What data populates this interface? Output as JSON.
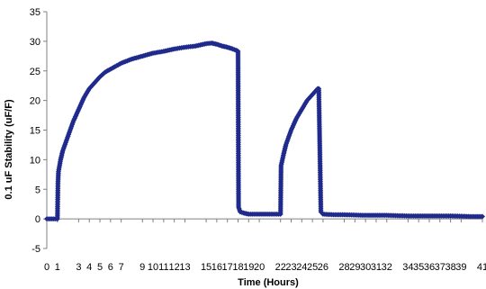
{
  "chart_data": {
    "type": "scatter",
    "title": "",
    "xlabel": "Time (Hours)",
    "ylabel": "0.1 uF Stability (uF/F)",
    "xlim": [
      0,
      41
    ],
    "ylim": [
      -5,
      35
    ],
    "x_ticks": [
      0,
      1,
      3,
      4,
      5,
      6,
      7,
      9,
      10,
      11,
      12,
      13,
      15,
      16,
      17,
      18,
      19,
      20,
      22,
      23,
      24,
      25,
      26,
      28,
      29,
      30,
      31,
      32,
      34,
      35,
      36,
      37,
      38,
      39,
      41
    ],
    "y_ticks": [
      -5,
      0,
      5,
      10,
      15,
      20,
      25,
      30,
      35
    ],
    "grid": false,
    "legend": "none",
    "marker_color": "#1f2a8c",
    "series": [
      {
        "x": [
          0,
          0.5,
          1.0,
          1.05,
          1.1,
          1.3,
          1.5,
          2,
          2.5,
          3,
          3.5,
          4,
          4.5,
          5,
          5.5,
          6,
          7,
          8,
          9,
          10,
          11,
          12,
          13,
          14,
          15,
          15.5,
          16,
          16.5,
          17,
          17.5,
          17.8,
          18.0,
          18.05,
          18.2,
          18.5,
          19,
          20,
          21,
          22,
          22.05,
          22.3,
          22.5,
          23,
          23.5,
          24,
          24.5,
          25,
          25.5,
          25.6,
          25.8,
          26,
          27,
          28,
          30,
          32,
          34,
          36,
          38,
          40,
          41
        ],
        "y": [
          0,
          0,
          0,
          6,
          8,
          10,
          11.5,
          14,
          16.5,
          18.5,
          20.5,
          22,
          23,
          24,
          24.8,
          25.3,
          26.3,
          27,
          27.5,
          28,
          28.3,
          28.7,
          29,
          29.2,
          29.6,
          29.7,
          29.5,
          29.2,
          29,
          28.7,
          28.5,
          28.3,
          2,
          1.2,
          1.0,
          0.8,
          0.8,
          0.8,
          0.8,
          9,
          11,
          12.5,
          15,
          17,
          18.5,
          20,
          21,
          22,
          22,
          1.2,
          0.8,
          0.7,
          0.7,
          0.6,
          0.6,
          0.5,
          0.5,
          0.5,
          0.4,
          0.4
        ]
      }
    ]
  }
}
